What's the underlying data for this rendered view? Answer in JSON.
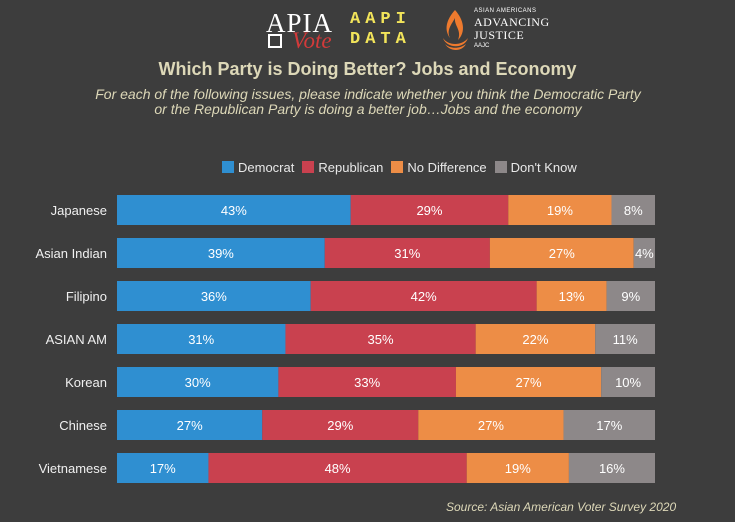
{
  "logos": {
    "apia_vote": {
      "top": "APIA",
      "bottom": "Vote"
    },
    "aapi_data": {
      "line1": "AAPI",
      "line2": "DATA"
    },
    "aaaj": {
      "small": "ASIAN AMERICANS",
      "line1": "ADVANCING",
      "line2": "JUSTICE",
      "sub": "AAJC"
    }
  },
  "colors": {
    "background": "#3d3d3d",
    "democrat": "#2f8fd1",
    "republican": "#c9414f",
    "no_difference": "#ed8d46",
    "dont_know": "#8d8889"
  },
  "chart_data": {
    "type": "bar",
    "orientation": "horizontal",
    "stacked": true,
    "normalized": true,
    "title": "Which Party is Doing Better? Jobs and Economy",
    "subtitle": "For each of the following issues, please  indicate whether you think the Democratic Party or the Republican Party is doing a better job…Jobs and the economy",
    "source": "Source: Asian American Voter Survey 2020",
    "legend_position": "top",
    "categories": [
      "Japanese",
      "Asian Indian",
      "Filipino",
      "ASIAN AM",
      "Korean",
      "Chinese",
      "Vietnamese"
    ],
    "series": [
      {
        "name": "Democrat",
        "values": [
          43,
          39,
          36,
          31,
          30,
          27,
          17
        ]
      },
      {
        "name": "Republican",
        "values": [
          29,
          31,
          42,
          35,
          33,
          29,
          48
        ]
      },
      {
        "name": "No Difference",
        "values": [
          19,
          27,
          13,
          22,
          27,
          27,
          19
        ]
      },
      {
        "name": "Don't Know",
        "values": [
          8,
          4,
          9,
          11,
          10,
          17,
          16
        ]
      }
    ],
    "value_suffix": "%"
  }
}
